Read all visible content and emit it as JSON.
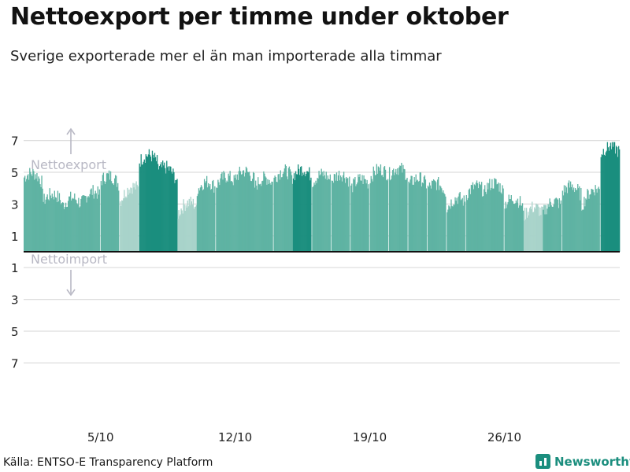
{
  "header": {
    "title": "Nettoexport per timme under oktober",
    "subtitle": "Sverige exporterade mer el än man importerade alla timmar"
  },
  "footer": {
    "source": "Källa: ENTSO-E Transparency Platform",
    "brand": "Newsworthy"
  },
  "colors": {
    "bar_mid": "#5fb3a3",
    "bar_dark": "#1b8e7e",
    "bar_light": "#a8d3ca",
    "grid": "#dddddd",
    "zero_line": "#111111",
    "annotation": "#b8b8c4"
  },
  "chart_data": {
    "type": "bar",
    "x_unit": "day of October (hourly bars)",
    "xlim": [
      1,
      32
    ],
    "ylim": [
      -8,
      8
    ],
    "y_ticks": [
      7,
      5,
      3,
      1,
      -1,
      -3,
      -5,
      -7
    ],
    "y_tick_labels": [
      "7",
      "5",
      "3",
      "1",
      "1",
      "3",
      "5",
      "7"
    ],
    "x_ticks": [
      {
        "x": 5,
        "label": "5/10"
      },
      {
        "x": 12,
        "label": "12/10"
      },
      {
        "x": 19,
        "label": "19/10"
      },
      {
        "x": 26,
        "label": "26/10"
      }
    ],
    "annotations": {
      "export": "Nettoexport",
      "import": "Nettoimport"
    },
    "daily_values": [
      4.8,
      3.3,
      3.0,
      3.2,
      4.6,
      3.3,
      5.8,
      5.3,
      2.5,
      4.0,
      4.3,
      4.8,
      4.2,
      4.7,
      4.9,
      4.5,
      4.6,
      4.1,
      4.8,
      5.0,
      4.3,
      4.1,
      2.9,
      3.7,
      4.1,
      3.1,
      2.4,
      2.6,
      3.9,
      3.0,
      6.3
    ],
    "daily_shades": [
      "mid",
      "mid",
      "mid",
      "mid",
      "mid",
      "light",
      "dark",
      "dark",
      "light",
      "mid",
      "mid",
      "mid",
      "mid",
      "mid",
      "dark",
      "mid",
      "mid",
      "mid",
      "mid",
      "mid",
      "mid",
      "mid",
      "mid",
      "mid",
      "mid",
      "mid",
      "light",
      "mid",
      "mid",
      "mid",
      "dark"
    ]
  }
}
